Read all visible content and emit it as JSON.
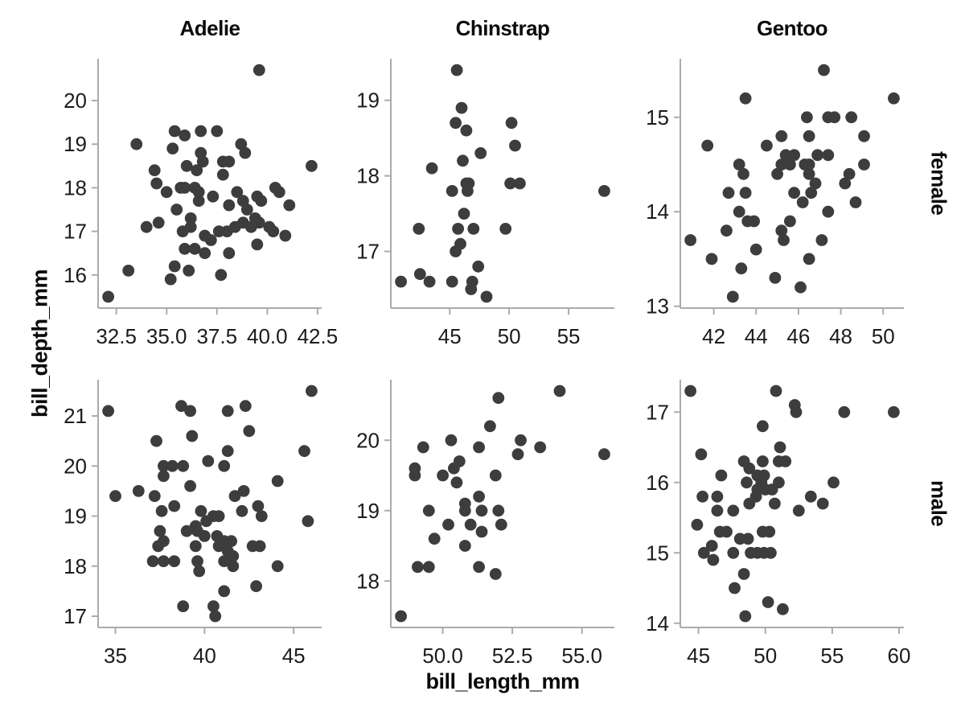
{
  "figure": {
    "col_titles": [
      "Adelie",
      "Chinstrap",
      "Gentoo"
    ],
    "row_labels": [
      "female",
      "male"
    ],
    "xlabel": "bill_length_mm",
    "ylabel": "bill_depth_mm",
    "colors": {
      "dot": "#3d3d3d",
      "spine": "#ababab",
      "tick_label": "#1c1c1c",
      "title": "#0b0b0b",
      "background": "#ffffff"
    }
  },
  "chart_data": [
    {
      "type": "scatter",
      "species": "Adelie",
      "sex": "female",
      "xlabel": "bill_length_mm",
      "ylabel": "bill_depth_mm",
      "x_tick_vals": [
        32.5,
        35.0,
        37.5,
        40.0,
        42.5
      ],
      "x_tick_labels": [
        "32.5",
        "35.0",
        "37.5",
        "40.0",
        "42.5"
      ],
      "y_tick_vals": [
        16,
        17,
        18,
        19,
        20
      ],
      "y_tick_labels": [
        "16",
        "17",
        "18",
        "19",
        "20"
      ],
      "points": [
        [
          39.6,
          20.7
        ],
        [
          35.4,
          19.3
        ],
        [
          35.9,
          19.2
        ],
        [
          36.7,
          19.3
        ],
        [
          37.5,
          19.3
        ],
        [
          33.5,
          19.0
        ],
        [
          35.3,
          18.9
        ],
        [
          38.7,
          19.0
        ],
        [
          38.9,
          18.8
        ],
        [
          36.7,
          18.8
        ],
        [
          36.8,
          18.6
        ],
        [
          36.0,
          18.5
        ],
        [
          36.5,
          18.4
        ],
        [
          37.8,
          18.6
        ],
        [
          38.1,
          18.6
        ],
        [
          42.2,
          18.5
        ],
        [
          37.8,
          18.3
        ],
        [
          34.4,
          18.4
        ],
        [
          34.5,
          18.1
        ],
        [
          35.0,
          17.9
        ],
        [
          35.7,
          18.0
        ],
        [
          35.9,
          18.0
        ],
        [
          36.4,
          18.0
        ],
        [
          36.6,
          17.9
        ],
        [
          36.6,
          17.7
        ],
        [
          37.3,
          17.8
        ],
        [
          38.5,
          17.9
        ],
        [
          38.8,
          17.7
        ],
        [
          39.5,
          17.8
        ],
        [
          39.7,
          17.7
        ],
        [
          40.4,
          18.0
        ],
        [
          40.6,
          17.9
        ],
        [
          41.1,
          17.6
        ],
        [
          38.1,
          17.6
        ],
        [
          39.0,
          17.5
        ],
        [
          39.4,
          17.3
        ],
        [
          39.6,
          17.2
        ],
        [
          35.5,
          17.5
        ],
        [
          36.2,
          17.3
        ],
        [
          36.2,
          17.1
        ],
        [
          35.8,
          17.0
        ],
        [
          34.6,
          17.2
        ],
        [
          34.0,
          17.1
        ],
        [
          36.9,
          16.9
        ],
        [
          37.2,
          16.8
        ],
        [
          37.6,
          17.0
        ],
        [
          38.0,
          17.0
        ],
        [
          38.4,
          17.1
        ],
        [
          38.8,
          17.2
        ],
        [
          39.2,
          17.1
        ],
        [
          40.1,
          17.1
        ],
        [
          40.3,
          17.0
        ],
        [
          40.9,
          16.9
        ],
        [
          39.5,
          16.7
        ],
        [
          35.9,
          16.6
        ],
        [
          36.4,
          16.6
        ],
        [
          36.9,
          16.5
        ],
        [
          38.1,
          16.5
        ],
        [
          35.4,
          16.2
        ],
        [
          36.1,
          16.1
        ],
        [
          37.7,
          16.0
        ],
        [
          35.2,
          15.9
        ],
        [
          33.1,
          16.1
        ],
        [
          32.1,
          15.5
        ]
      ]
    },
    {
      "type": "scatter",
      "species": "Chinstrap",
      "sex": "female",
      "xlabel": "bill_length_mm",
      "ylabel": "bill_depth_mm",
      "x_tick_vals": [
        45,
        50,
        55
      ],
      "x_tick_labels": [
        "45",
        "50",
        "55"
      ],
      "y_tick_vals": [
        17,
        18,
        19
      ],
      "y_tick_labels": [
        "17",
        "18",
        "19"
      ],
      "points": [
        [
          45.6,
          19.4
        ],
        [
          46.0,
          18.9
        ],
        [
          45.5,
          18.7
        ],
        [
          46.4,
          18.6
        ],
        [
          50.2,
          18.7
        ],
        [
          50.5,
          18.4
        ],
        [
          47.6,
          18.3
        ],
        [
          46.1,
          18.2
        ],
        [
          43.5,
          18.1
        ],
        [
          46.4,
          17.9
        ],
        [
          46.6,
          17.9
        ],
        [
          46.5,
          17.8
        ],
        [
          45.2,
          17.8
        ],
        [
          50.1,
          17.9
        ],
        [
          50.9,
          17.9
        ],
        [
          58.0,
          17.8
        ],
        [
          46.2,
          17.5
        ],
        [
          42.4,
          17.3
        ],
        [
          45.7,
          17.3
        ],
        [
          47.0,
          17.3
        ],
        [
          49.7,
          17.3
        ],
        [
          45.9,
          17.1
        ],
        [
          45.5,
          17.0
        ],
        [
          47.4,
          16.8
        ],
        [
          40.9,
          16.6
        ],
        [
          42.5,
          16.7
        ],
        [
          43.3,
          16.6
        ],
        [
          45.2,
          16.6
        ],
        [
          46.9,
          16.6
        ],
        [
          46.8,
          16.5
        ],
        [
          48.1,
          16.4
        ]
      ]
    },
    {
      "type": "scatter",
      "species": "Gentoo",
      "sex": "female",
      "xlabel": "bill_length_mm",
      "ylabel": "bill_depth_mm",
      "x_tick_vals": [
        42,
        44,
        46,
        48,
        50
      ],
      "x_tick_labels": [
        "42",
        "44",
        "46",
        "48",
        "50"
      ],
      "y_tick_vals": [
        13,
        14,
        15
      ],
      "y_tick_labels": [
        "13",
        "14",
        "15"
      ],
      "points": [
        [
          47.2,
          15.5
        ],
        [
          43.5,
          15.2
        ],
        [
          50.5,
          15.2
        ],
        [
          46.4,
          15.0
        ],
        [
          47.4,
          15.0
        ],
        [
          47.7,
          15.0
        ],
        [
          48.5,
          15.0
        ],
        [
          45.2,
          14.8
        ],
        [
          46.5,
          14.8
        ],
        [
          49.1,
          14.8
        ],
        [
          41.7,
          14.7
        ],
        [
          44.5,
          14.7
        ],
        [
          45.4,
          14.6
        ],
        [
          45.8,
          14.6
        ],
        [
          46.9,
          14.6
        ],
        [
          47.4,
          14.6
        ],
        [
          43.2,
          14.5
        ],
        [
          45.2,
          14.5
        ],
        [
          45.6,
          14.5
        ],
        [
          46.3,
          14.5
        ],
        [
          46.5,
          14.5
        ],
        [
          49.1,
          14.5
        ],
        [
          43.4,
          14.4
        ],
        [
          45.0,
          14.4
        ],
        [
          46.5,
          14.4
        ],
        [
          48.4,
          14.4
        ],
        [
          46.8,
          14.3
        ],
        [
          48.2,
          14.3
        ],
        [
          42.7,
          14.2
        ],
        [
          43.5,
          14.2
        ],
        [
          45.8,
          14.2
        ],
        [
          46.6,
          14.2
        ],
        [
          46.2,
          14.1
        ],
        [
          48.7,
          14.1
        ],
        [
          43.2,
          14.0
        ],
        [
          47.4,
          14.0
        ],
        [
          43.6,
          13.9
        ],
        [
          43.9,
          13.9
        ],
        [
          45.6,
          13.9
        ],
        [
          42.6,
          13.8
        ],
        [
          45.2,
          13.8
        ],
        [
          40.9,
          13.7
        ],
        [
          45.3,
          13.7
        ],
        [
          47.1,
          13.7
        ],
        [
          44.0,
          13.6
        ],
        [
          41.9,
          13.5
        ],
        [
          46.5,
          13.5
        ],
        [
          43.3,
          13.4
        ],
        [
          44.9,
          13.3
        ],
        [
          46.1,
          13.2
        ],
        [
          42.9,
          13.1
        ]
      ]
    },
    {
      "type": "scatter",
      "species": "Adelie",
      "sex": "male",
      "xlabel": "bill_length_mm",
      "ylabel": "bill_depth_mm",
      "x_tick_vals": [
        35,
        40,
        45
      ],
      "x_tick_labels": [
        "35",
        "40",
        "45"
      ],
      "y_tick_vals": [
        17,
        18,
        19,
        20,
        21
      ],
      "y_tick_labels": [
        "17",
        "18",
        "19",
        "20",
        "21"
      ],
      "points": [
        [
          34.6,
          21.1
        ],
        [
          46.0,
          21.5
        ],
        [
          38.7,
          21.2
        ],
        [
          39.2,
          21.1
        ],
        [
          41.3,
          21.1
        ],
        [
          42.3,
          21.2
        ],
        [
          39.3,
          20.6
        ],
        [
          42.5,
          20.7
        ],
        [
          37.3,
          20.5
        ],
        [
          41.3,
          20.3
        ],
        [
          45.6,
          20.3
        ],
        [
          40.2,
          20.1
        ],
        [
          37.7,
          20.0
        ],
        [
          38.2,
          20.0
        ],
        [
          38.8,
          20.0
        ],
        [
          41.1,
          20.0
        ],
        [
          37.7,
          19.8
        ],
        [
          39.2,
          19.6
        ],
        [
          44.1,
          19.7
        ],
        [
          35.0,
          19.4
        ],
        [
          36.3,
          19.5
        ],
        [
          37.2,
          19.4
        ],
        [
          41.7,
          19.4
        ],
        [
          42.2,
          19.5
        ],
        [
          43.0,
          19.2
        ],
        [
          43.2,
          19.0
        ],
        [
          45.8,
          18.9
        ],
        [
          38.3,
          19.2
        ],
        [
          37.6,
          19.1
        ],
        [
          39.8,
          19.1
        ],
        [
          42.1,
          19.1
        ],
        [
          40.8,
          19.0
        ],
        [
          39.5,
          18.8
        ],
        [
          40.1,
          18.9
        ],
        [
          40.5,
          19.0
        ],
        [
          39.6,
          18.7
        ],
        [
          39.0,
          18.7
        ],
        [
          40.0,
          18.6
        ],
        [
          40.7,
          18.6
        ],
        [
          41.1,
          18.5
        ],
        [
          41.5,
          18.5
        ],
        [
          37.5,
          18.7
        ],
        [
          37.7,
          18.5
        ],
        [
          37.4,
          18.4
        ],
        [
          39.5,
          18.4
        ],
        [
          40.8,
          18.4
        ],
        [
          41.3,
          18.3
        ],
        [
          41.6,
          18.2
        ],
        [
          42.7,
          18.4
        ],
        [
          43.1,
          18.4
        ],
        [
          37.1,
          18.1
        ],
        [
          37.7,
          18.1
        ],
        [
          38.3,
          18.1
        ],
        [
          39.6,
          18.1
        ],
        [
          39.7,
          17.9
        ],
        [
          41.1,
          18.1
        ],
        [
          41.6,
          18.0
        ],
        [
          44.1,
          18.0
        ],
        [
          42.9,
          17.6
        ],
        [
          41.1,
          17.5
        ],
        [
          38.8,
          17.2
        ],
        [
          40.5,
          17.2
        ],
        [
          40.6,
          17.0
        ]
      ]
    },
    {
      "type": "scatter",
      "species": "Chinstrap",
      "sex": "male",
      "xlabel": "bill_length_mm",
      "ylabel": "bill_depth_mm",
      "x_tick_vals": [
        50.0,
        52.5,
        55.0
      ],
      "x_tick_labels": [
        "50.0",
        "52.5",
        "55.0"
      ],
      "y_tick_vals": [
        18,
        19,
        20
      ],
      "y_tick_labels": [
        "18",
        "19",
        "20"
      ],
      "points": [
        [
          54.2,
          20.7
        ],
        [
          52.0,
          20.6
        ],
        [
          51.7,
          20.2
        ],
        [
          50.3,
          20.0
        ],
        [
          49.3,
          19.9
        ],
        [
          51.3,
          19.9
        ],
        [
          52.8,
          20.0
        ],
        [
          52.7,
          19.8
        ],
        [
          53.5,
          19.9
        ],
        [
          55.8,
          19.8
        ],
        [
          50.6,
          19.7
        ],
        [
          50.4,
          19.6
        ],
        [
          49.0,
          19.6
        ],
        [
          49.0,
          19.5
        ],
        [
          50.0,
          19.5
        ],
        [
          50.5,
          19.4
        ],
        [
          51.9,
          19.5
        ],
        [
          51.3,
          19.2
        ],
        [
          50.8,
          19.1
        ],
        [
          50.8,
          19.0
        ],
        [
          51.4,
          19.0
        ],
        [
          52.0,
          19.0
        ],
        [
          49.5,
          19.0
        ],
        [
          50.2,
          18.8
        ],
        [
          51.0,
          18.8
        ],
        [
          52.1,
          18.8
        ],
        [
          51.4,
          18.7
        ],
        [
          49.7,
          18.6
        ],
        [
          50.8,
          18.5
        ],
        [
          49.1,
          18.2
        ],
        [
          49.5,
          18.2
        ],
        [
          51.3,
          18.2
        ],
        [
          51.9,
          18.1
        ],
        [
          48.5,
          17.5
        ]
      ]
    },
    {
      "type": "scatter",
      "species": "Gentoo",
      "sex": "male",
      "xlabel": "bill_length_mm",
      "ylabel": "bill_depth_mm",
      "x_tick_vals": [
        45,
        50,
        55,
        60
      ],
      "x_tick_labels": [
        "45",
        "50",
        "55",
        "60"
      ],
      "y_tick_vals": [
        14,
        15,
        16,
        17
      ],
      "y_tick_labels": [
        "14",
        "15",
        "16",
        "17"
      ],
      "points": [
        [
          44.4,
          17.3
        ],
        [
          50.8,
          17.3
        ],
        [
          52.2,
          17.1
        ],
        [
          52.3,
          17.0
        ],
        [
          55.9,
          17.0
        ],
        [
          59.6,
          17.0
        ],
        [
          49.8,
          16.8
        ],
        [
          51.1,
          16.5
        ],
        [
          45.2,
          16.4
        ],
        [
          48.4,
          16.3
        ],
        [
          49.8,
          16.3
        ],
        [
          51.0,
          16.3
        ],
        [
          51.5,
          16.3
        ],
        [
          48.8,
          16.2
        ],
        [
          49.4,
          16.1
        ],
        [
          49.9,
          16.1
        ],
        [
          48.6,
          16.0
        ],
        [
          49.7,
          16.0
        ],
        [
          46.7,
          16.1
        ],
        [
          51.0,
          16.0
        ],
        [
          55.1,
          16.0
        ],
        [
          45.3,
          15.8
        ],
        [
          46.4,
          15.8
        ],
        [
          49.4,
          15.9
        ],
        [
          50.0,
          15.9
        ],
        [
          50.5,
          15.9
        ],
        [
          49.3,
          15.8
        ],
        [
          48.8,
          15.7
        ],
        [
          50.7,
          15.7
        ],
        [
          53.4,
          15.8
        ],
        [
          54.3,
          15.7
        ],
        [
          46.4,
          15.6
        ],
        [
          47.6,
          15.6
        ],
        [
          52.5,
          15.6
        ],
        [
          44.9,
          15.4
        ],
        [
          46.6,
          15.3
        ],
        [
          47.1,
          15.3
        ],
        [
          49.8,
          15.3
        ],
        [
          50.3,
          15.3
        ],
        [
          48.1,
          15.2
        ],
        [
          48.7,
          15.2
        ],
        [
          46.0,
          15.1
        ],
        [
          45.4,
          15.0
        ],
        [
          47.6,
          15.0
        ],
        [
          48.9,
          15.0
        ],
        [
          49.4,
          15.0
        ],
        [
          49.9,
          15.0
        ],
        [
          50.4,
          15.0
        ],
        [
          46.1,
          14.9
        ],
        [
          48.4,
          14.7
        ],
        [
          47.7,
          14.5
        ],
        [
          50.2,
          14.3
        ],
        [
          51.3,
          14.2
        ],
        [
          48.5,
          14.1
        ]
      ]
    }
  ]
}
